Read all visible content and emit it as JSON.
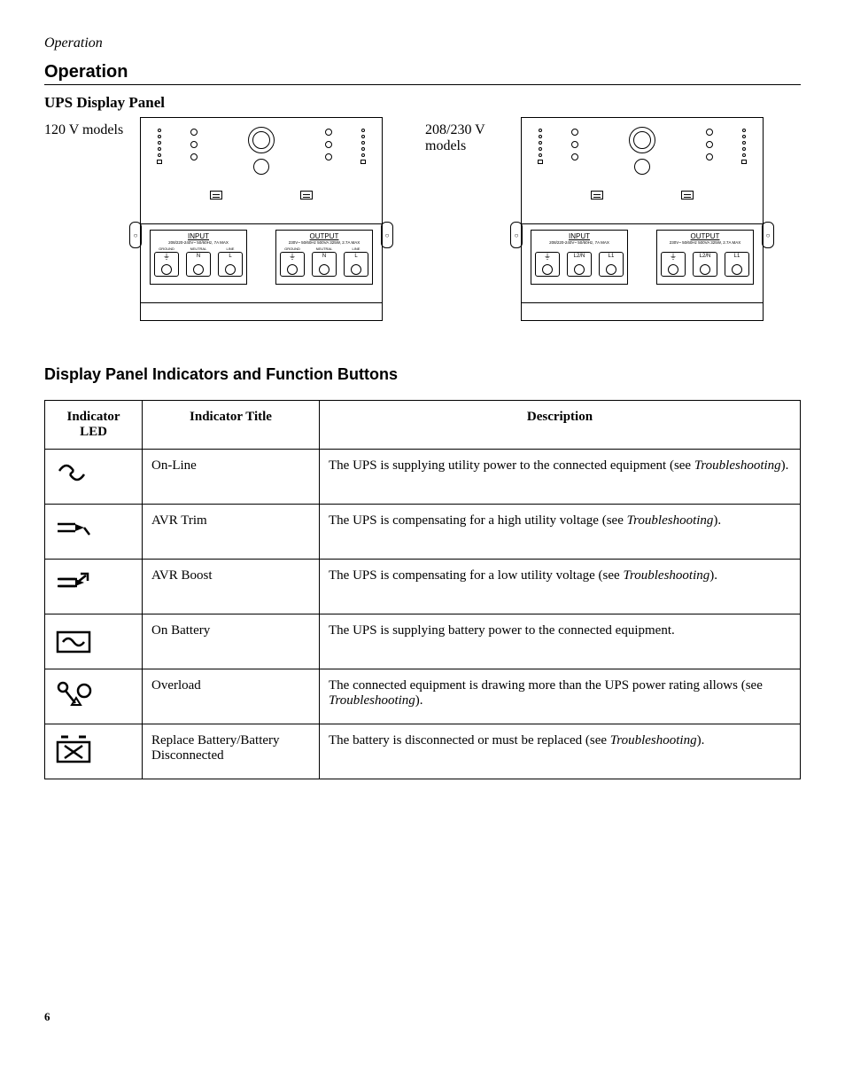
{
  "header_label": "Operation",
  "section_title": "Operation",
  "subhead": "UPS Display Panel",
  "panel_labels": {
    "left": "120 V models",
    "right": "208/230 V models"
  },
  "terminals": {
    "input_title": "INPUT",
    "output_title": "OUTPUT",
    "input_sub": "208/220-240V~ 50/60Hz, 7A MAX",
    "output_sub": "230V~ 50/60Hz 500VA 325W, 2.7A MAX",
    "labels_120_in": [
      "GROUND",
      "NEUTRAL",
      "LINE"
    ],
    "labels_120_out": [
      "GROUND",
      "NEUTRAL",
      "LINE"
    ],
    "names_120": [
      "",
      "N",
      "L"
    ],
    "names_230": [
      "",
      "L2/N",
      "L1"
    ]
  },
  "table_title": "Display Panel Indicators and Function Buttons",
  "table": {
    "headers": [
      "Indicator LED",
      "Indicator Title",
      "Description"
    ],
    "rows": [
      {
        "icon": "online",
        "title": "On-Line",
        "desc_pre": "The UPS is supplying utility power to the connected equipment (see ",
        "desc_em": "Troubleshooting",
        "desc_post": ")."
      },
      {
        "icon": "avrtrim",
        "title": "AVR Trim",
        "desc_pre": "The UPS is compensating for a high utility voltage (see ",
        "desc_em": "Troubleshooting",
        "desc_post": ")."
      },
      {
        "icon": "avrboost",
        "title": "AVR Boost",
        "desc_pre": "The UPS is compensating for a low utility voltage (see ",
        "desc_em": "Troubleshooting",
        "desc_post": ")."
      },
      {
        "icon": "onbattery",
        "title": "On Battery",
        "desc_pre": "The UPS is supplying battery power to the connected equipment.",
        "desc_em": "",
        "desc_post": ""
      },
      {
        "icon": "overload",
        "title": "Overload",
        "desc_pre": "The connected equipment is drawing more than the UPS power rating allows (see ",
        "desc_em": "Troubleshooting",
        "desc_post": ")."
      },
      {
        "icon": "replacebatt",
        "title": "Replace Battery/Battery Disconnected",
        "desc_pre": "The battery is disconnected or must be replaced (see ",
        "desc_em": "Troubleshooting",
        "desc_post": ")."
      }
    ]
  },
  "page_number": "6"
}
